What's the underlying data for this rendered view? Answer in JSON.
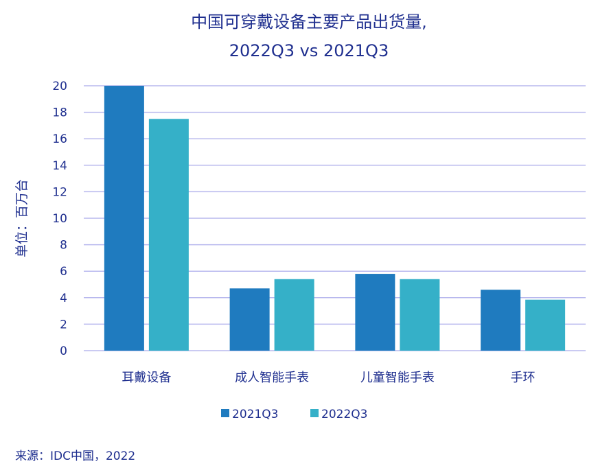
{
  "chart_data": {
    "type": "bar",
    "title_line1": "中国可穿戴设备主要产品出货量,",
    "title_line2": "2022Q3 vs 2021Q3",
    "ylabel": "单位：百万台",
    "ylim": [
      0,
      20
    ],
    "yticks": [
      "0",
      "2",
      "4",
      "6",
      "8",
      "10",
      "12",
      "14",
      "16",
      "18",
      "20"
    ],
    "grid": true,
    "legend_position": "bottom",
    "categories": [
      "耳戴设备",
      "成人智能手表",
      "儿童智能手表",
      "手环"
    ],
    "series": [
      {
        "name": "2021Q3",
        "values": [
          20.0,
          4.7,
          5.8,
          4.6
        ],
        "color": "#1f7bbf"
      },
      {
        "name": "2022Q3",
        "values": [
          17.5,
          5.4,
          5.4,
          3.85
        ],
        "color": "#35b0c8"
      }
    ]
  },
  "source": "来源：IDC中国，2022"
}
